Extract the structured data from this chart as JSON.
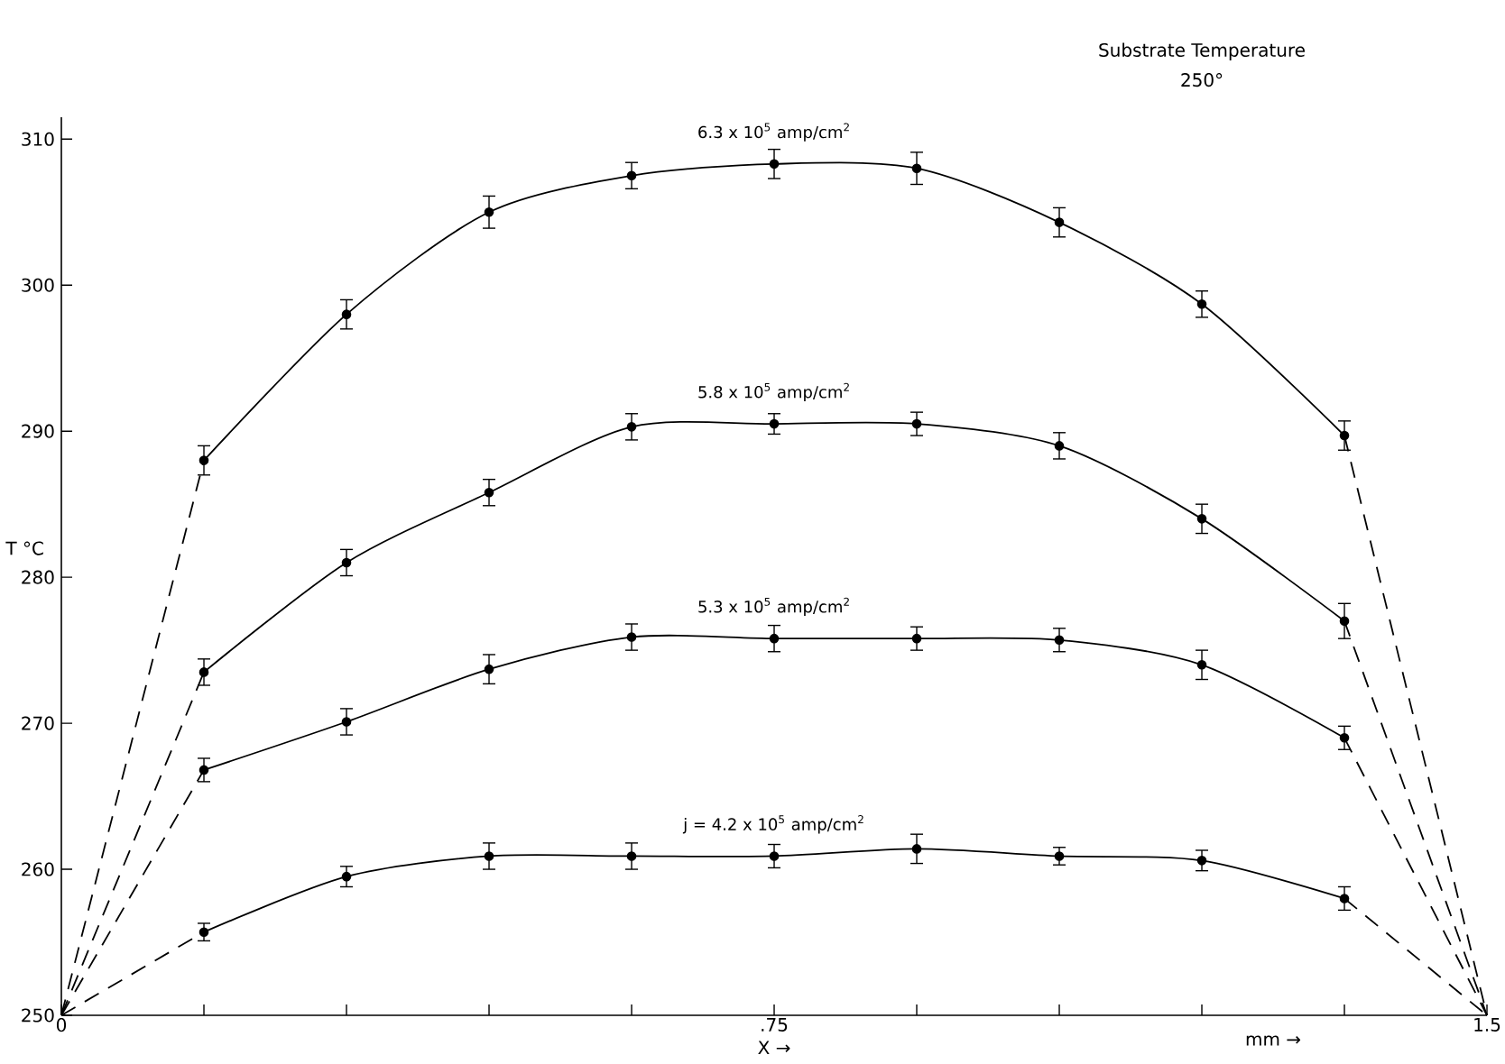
{
  "chart_data": {
    "type": "line",
    "title": "Substrate Temperature",
    "subtitle": "250°",
    "xlabel": "X →",
    "ylabel": "T °C",
    "annotations": [
      "mm →"
    ],
    "x": [
      0.15,
      0.3,
      0.45,
      0.6,
      0.75,
      0.9,
      1.05,
      1.2,
      1.35
    ],
    "xlim": [
      0,
      1.5
    ],
    "ylim": [
      250,
      311.5
    ],
    "xticks": [
      0,
      {
        "value": 0.15,
        "label": null
      },
      {
        "value": 0.3,
        "label": null
      },
      {
        "value": 0.45,
        "label": null
      },
      {
        "value": 0.6,
        "label": null
      },
      {
        "value": 0.75,
        "label": ".75"
      },
      {
        "value": 0.9,
        "label": null
      },
      {
        "value": 1.05,
        "label": null
      },
      {
        "value": 1.2,
        "label": null
      },
      {
        "value": 1.35,
        "label": null
      },
      1.5
    ],
    "yticks": [
      250,
      260,
      270,
      280,
      290,
      300,
      310
    ],
    "grid": false,
    "series": [
      {
        "name": "6.3 x 10$^{5}$ amp/cm$^{2}$",
        "color": "#000000",
        "marker": "circle",
        "line_style": "solid",
        "values": [
          288,
          298,
          305,
          307.5,
          308.3,
          308,
          304.3,
          298.7,
          289.7
        ],
        "errors": [
          1,
          1,
          1.1,
          0.9,
          1,
          1.1,
          1,
          0.9,
          1
        ]
      },
      {
        "name": "5.8 x 10$^{5}$ amp/cm$^{2}$",
        "color": "#000000",
        "marker": "circle",
        "line_style": "solid",
        "values": [
          273.5,
          281,
          285.8,
          290.3,
          290.5,
          290.5,
          289,
          284,
          277
        ],
        "errors": [
          0.9,
          0.9,
          0.9,
          0.9,
          0.7,
          0.8,
          0.9,
          1,
          1.2
        ]
      },
      {
        "name": "5.3 x 10$^{5}$ amp/cm$^{2}$",
        "color": "#000000",
        "marker": "circle",
        "line_style": "solid",
        "values": [
          266.8,
          270.1,
          273.7,
          275.9,
          275.8,
          275.8,
          275.7,
          274,
          269
        ],
        "errors": [
          0.8,
          0.9,
          1,
          0.9,
          0.9,
          0.8,
          0.8,
          1,
          0.8
        ]
      },
      {
        "name": "j = 4.2 x 10$^{5}$ amp/cm$^{2}$",
        "color": "#000000",
        "marker": "circle",
        "line_style": "solid",
        "values": [
          255.7,
          259.5,
          260.9,
          260.9,
          260.9,
          261.4,
          260.9,
          260.6,
          258
        ],
        "errors": [
          0.6,
          0.7,
          0.9,
          0.9,
          0.8,
          1,
          0.6,
          0.7,
          0.8
        ]
      },
      {
        "color": "#000000",
        "marker": "none",
        "line_style": "dashed",
        "x": [
          0,
          0.15
        ],
        "values": [
          250,
          288
        ]
      },
      {
        "color": "#000000",
        "marker": "none",
        "line_style": "dashed",
        "x": [
          1.35,
          1.5
        ],
        "values": [
          289.7,
          250
        ]
      },
      {
        "color": "#000000",
        "marker": "none",
        "line_style": "dashed",
        "x": [
          0,
          0.15
        ],
        "values": [
          250,
          273.5
        ]
      },
      {
        "color": "#000000",
        "marker": "none",
        "line_style": "dashed",
        "x": [
          1.35,
          1.5
        ],
        "values": [
          277,
          250
        ]
      },
      {
        "color": "#000000",
        "marker": "none",
        "line_style": "dashed",
        "x": [
          0,
          0.15
        ],
        "values": [
          250,
          266.8
        ]
      },
      {
        "color": "#000000",
        "marker": "none",
        "line_style": "dashed",
        "x": [
          1.35,
          1.5
        ],
        "values": [
          269,
          250
        ]
      },
      {
        "color": "#000000",
        "marker": "none",
        "line_style": "dashed",
        "x": [
          0,
          0.15
        ],
        "values": [
          250,
          255.7
        ]
      },
      {
        "color": "#000000",
        "marker": "none",
        "line_style": "dashed",
        "x": [
          1.35,
          1.5
        ],
        "values": [
          258,
          250
        ]
      }
    ]
  }
}
